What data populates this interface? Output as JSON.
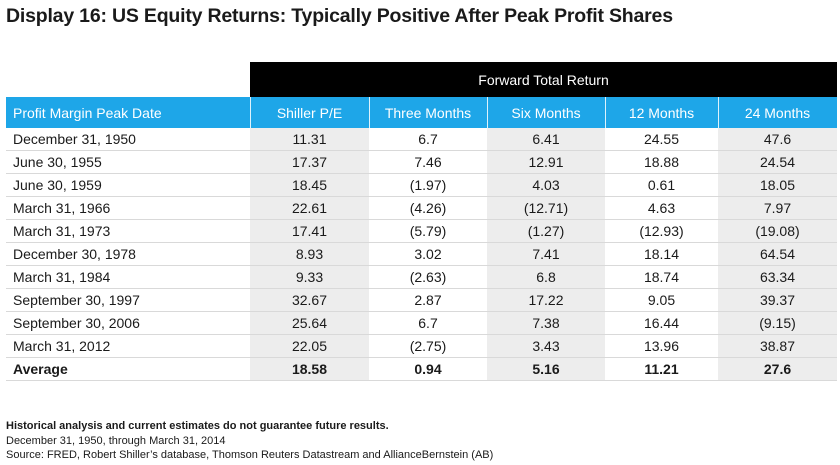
{
  "title": "Display 16: US Equity Returns: Typically Positive After Peak Profit Shares",
  "group_header": "Forward Total Return",
  "columns": [
    "Profit Margin Peak Date",
    "Shiller P/E",
    "Three Months",
    "Six Months",
    "12 Months",
    "24 Months"
  ],
  "rows": [
    [
      "December 31, 1950",
      "11.31",
      "6.7",
      "6.41",
      "24.55",
      "47.6"
    ],
    [
      "June 30, 1955",
      "17.37",
      "7.46",
      "12.91",
      "18.88",
      "24.54"
    ],
    [
      "June 30, 1959",
      "18.45",
      "(1.97)",
      "4.03",
      "0.61",
      "18.05"
    ],
    [
      "March 31, 1966",
      "22.61",
      "(4.26)",
      "(12.71)",
      "4.63",
      "7.97"
    ],
    [
      "March 31, 1973",
      "17.41",
      "(5.79)",
      "(1.27)",
      "(12.93)",
      "(19.08)"
    ],
    [
      "December 30, 1978",
      "8.93",
      "3.02",
      "7.41",
      "18.14",
      "64.54"
    ],
    [
      "March 31, 1984",
      "9.33",
      "(2.63)",
      "6.8",
      "18.74",
      "63.34"
    ],
    [
      "September 30, 1997",
      "32.67",
      "2.87",
      "17.22",
      "9.05",
      "39.37"
    ],
    [
      "September 30, 2006",
      "25.64",
      "6.7",
      "7.38",
      "16.44",
      "(9.15)"
    ],
    [
      "March 31, 2012",
      "22.05",
      "(2.75)",
      "3.43",
      "13.96",
      "38.87"
    ],
    [
      "Average",
      "18.58",
      "0.94",
      "5.16",
      "11.21",
      "27.6"
    ]
  ],
  "footer": {
    "disclaimer": "Historical analysis and current estimates do not guarantee future results.",
    "period": "December 31, 1950, through March 31, 2014",
    "source": "Source: FRED, Robert Shiller’s database, Thomson Reuters Datastream and AllianceBernstein (AB)"
  },
  "colors": {
    "header_blue": "#1ea6e8",
    "band_black": "#000000",
    "shade_gray": "#ededed"
  }
}
